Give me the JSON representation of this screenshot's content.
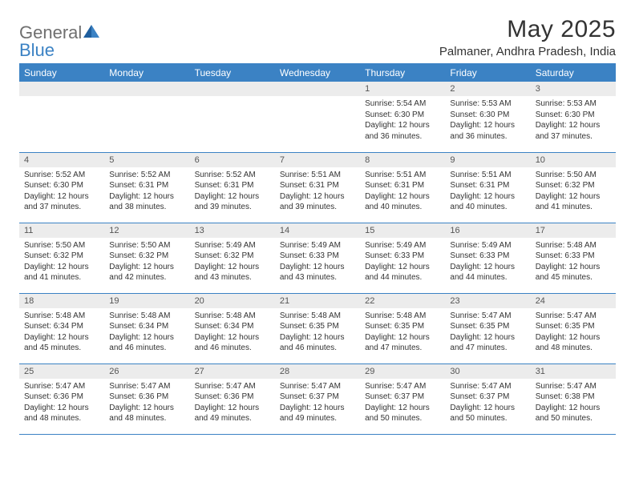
{
  "logo": {
    "general": "General",
    "blue": "Blue"
  },
  "title": "May 2025",
  "location": "Palmaner, Andhra Pradesh, India",
  "colors": {
    "header_bg": "#3b82c4",
    "header_text": "#ffffff",
    "daynum_bg": "#ececec",
    "daynum_text": "#555555",
    "body_text": "#333333",
    "border": "#3b82c4",
    "logo_gray": "#6f6f6f",
    "logo_blue": "#3b82c4",
    "page_bg": "#ffffff"
  },
  "typography": {
    "title_fontsize": 30,
    "location_fontsize": 15,
    "weekday_fontsize": 12,
    "daynum_fontsize": 11,
    "cell_fontsize": 10
  },
  "weekdays": [
    "Sunday",
    "Monday",
    "Tuesday",
    "Wednesday",
    "Thursday",
    "Friday",
    "Saturday"
  ],
  "weeks": [
    [
      null,
      null,
      null,
      null,
      {
        "n": "1",
        "sr": "5:54 AM",
        "ss": "6:30 PM",
        "d1": "Daylight: 12 hours",
        "d2": "and 36 minutes."
      },
      {
        "n": "2",
        "sr": "5:53 AM",
        "ss": "6:30 PM",
        "d1": "Daylight: 12 hours",
        "d2": "and 36 minutes."
      },
      {
        "n": "3",
        "sr": "5:53 AM",
        "ss": "6:30 PM",
        "d1": "Daylight: 12 hours",
        "d2": "and 37 minutes."
      }
    ],
    [
      {
        "n": "4",
        "sr": "5:52 AM",
        "ss": "6:30 PM",
        "d1": "Daylight: 12 hours",
        "d2": "and 37 minutes."
      },
      {
        "n": "5",
        "sr": "5:52 AM",
        "ss": "6:31 PM",
        "d1": "Daylight: 12 hours",
        "d2": "and 38 minutes."
      },
      {
        "n": "6",
        "sr": "5:52 AM",
        "ss": "6:31 PM",
        "d1": "Daylight: 12 hours",
        "d2": "and 39 minutes."
      },
      {
        "n": "7",
        "sr": "5:51 AM",
        "ss": "6:31 PM",
        "d1": "Daylight: 12 hours",
        "d2": "and 39 minutes."
      },
      {
        "n": "8",
        "sr": "5:51 AM",
        "ss": "6:31 PM",
        "d1": "Daylight: 12 hours",
        "d2": "and 40 minutes."
      },
      {
        "n": "9",
        "sr": "5:51 AM",
        "ss": "6:31 PM",
        "d1": "Daylight: 12 hours",
        "d2": "and 40 minutes."
      },
      {
        "n": "10",
        "sr": "5:50 AM",
        "ss": "6:32 PM",
        "d1": "Daylight: 12 hours",
        "d2": "and 41 minutes."
      }
    ],
    [
      {
        "n": "11",
        "sr": "5:50 AM",
        "ss": "6:32 PM",
        "d1": "Daylight: 12 hours",
        "d2": "and 41 minutes."
      },
      {
        "n": "12",
        "sr": "5:50 AM",
        "ss": "6:32 PM",
        "d1": "Daylight: 12 hours",
        "d2": "and 42 minutes."
      },
      {
        "n": "13",
        "sr": "5:49 AM",
        "ss": "6:32 PM",
        "d1": "Daylight: 12 hours",
        "d2": "and 43 minutes."
      },
      {
        "n": "14",
        "sr": "5:49 AM",
        "ss": "6:33 PM",
        "d1": "Daylight: 12 hours",
        "d2": "and 43 minutes."
      },
      {
        "n": "15",
        "sr": "5:49 AM",
        "ss": "6:33 PM",
        "d1": "Daylight: 12 hours",
        "d2": "and 44 minutes."
      },
      {
        "n": "16",
        "sr": "5:49 AM",
        "ss": "6:33 PM",
        "d1": "Daylight: 12 hours",
        "d2": "and 44 minutes."
      },
      {
        "n": "17",
        "sr": "5:48 AM",
        "ss": "6:33 PM",
        "d1": "Daylight: 12 hours",
        "d2": "and 45 minutes."
      }
    ],
    [
      {
        "n": "18",
        "sr": "5:48 AM",
        "ss": "6:34 PM",
        "d1": "Daylight: 12 hours",
        "d2": "and 45 minutes."
      },
      {
        "n": "19",
        "sr": "5:48 AM",
        "ss": "6:34 PM",
        "d1": "Daylight: 12 hours",
        "d2": "and 46 minutes."
      },
      {
        "n": "20",
        "sr": "5:48 AM",
        "ss": "6:34 PM",
        "d1": "Daylight: 12 hours",
        "d2": "and 46 minutes."
      },
      {
        "n": "21",
        "sr": "5:48 AM",
        "ss": "6:35 PM",
        "d1": "Daylight: 12 hours",
        "d2": "and 46 minutes."
      },
      {
        "n": "22",
        "sr": "5:48 AM",
        "ss": "6:35 PM",
        "d1": "Daylight: 12 hours",
        "d2": "and 47 minutes."
      },
      {
        "n": "23",
        "sr": "5:47 AM",
        "ss": "6:35 PM",
        "d1": "Daylight: 12 hours",
        "d2": "and 47 minutes."
      },
      {
        "n": "24",
        "sr": "5:47 AM",
        "ss": "6:35 PM",
        "d1": "Daylight: 12 hours",
        "d2": "and 48 minutes."
      }
    ],
    [
      {
        "n": "25",
        "sr": "5:47 AM",
        "ss": "6:36 PM",
        "d1": "Daylight: 12 hours",
        "d2": "and 48 minutes."
      },
      {
        "n": "26",
        "sr": "5:47 AM",
        "ss": "6:36 PM",
        "d1": "Daylight: 12 hours",
        "d2": "and 48 minutes."
      },
      {
        "n": "27",
        "sr": "5:47 AM",
        "ss": "6:36 PM",
        "d1": "Daylight: 12 hours",
        "d2": "and 49 minutes."
      },
      {
        "n": "28",
        "sr": "5:47 AM",
        "ss": "6:37 PM",
        "d1": "Daylight: 12 hours",
        "d2": "and 49 minutes."
      },
      {
        "n": "29",
        "sr": "5:47 AM",
        "ss": "6:37 PM",
        "d1": "Daylight: 12 hours",
        "d2": "and 50 minutes."
      },
      {
        "n": "30",
        "sr": "5:47 AM",
        "ss": "6:37 PM",
        "d1": "Daylight: 12 hours",
        "d2": "and 50 minutes."
      },
      {
        "n": "31",
        "sr": "5:47 AM",
        "ss": "6:38 PM",
        "d1": "Daylight: 12 hours",
        "d2": "and 50 minutes."
      }
    ]
  ],
  "labels": {
    "sunrise": "Sunrise: ",
    "sunset": "Sunset: "
  }
}
